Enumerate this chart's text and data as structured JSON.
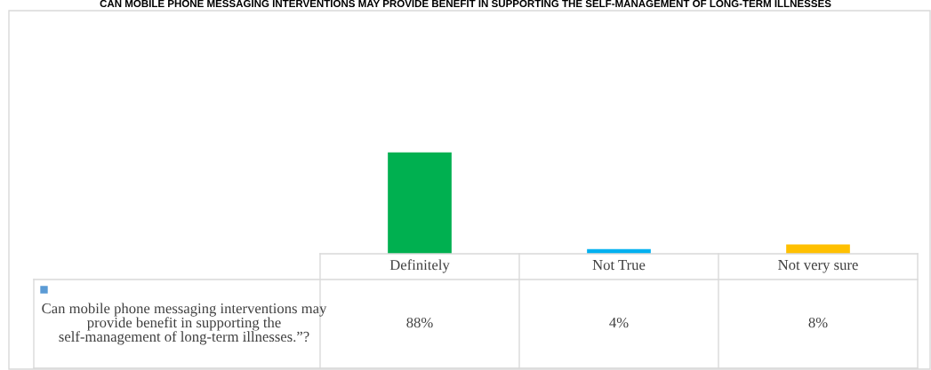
{
  "chart_data": {
    "type": "bar",
    "title": "CAN MOBILE PHONE MESSAGING INTERVENTIONS MAY PROVIDE BENEFIT IN SUPPORTING THE SELF-MANAGEMENT OF LONG-TERM ILLNESSES",
    "categories": [
      "Definitely",
      "Not True",
      "Not very sure"
    ],
    "series": [
      {
        "name": "Can mobile phone messaging interventions may provide benefit in supporting the self-management of long-term illnesses.”?",
        "color": "#5b9bd5",
        "colors": [
          "#00b050",
          "#00b0f0",
          "#ffc000"
        ],
        "values": [
          88,
          4,
          8
        ],
        "value_labels": [
          "88%",
          "4%",
          "8%"
        ]
      }
    ],
    "data_labels": true,
    "legend": "bottom left"
  }
}
